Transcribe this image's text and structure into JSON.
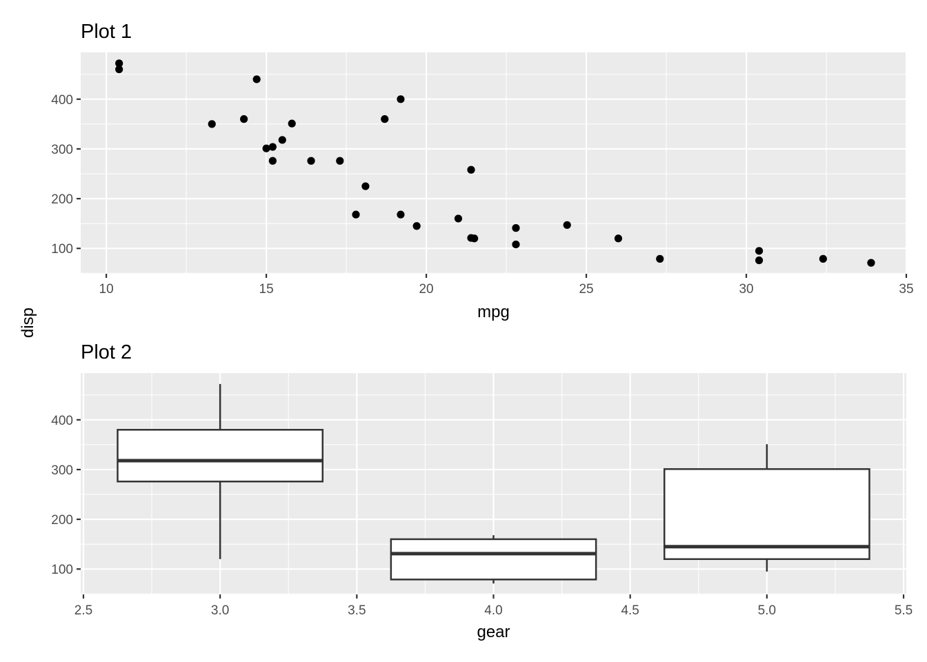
{
  "shared_ylabel": "disp",
  "chart_data": [
    {
      "type": "scatter",
      "title": "Plot 1",
      "xlabel": "mpg",
      "ylabel": "",
      "xlim": [
        9.2,
        35.0
      ],
      "ylim": [
        49.0,
        494.0
      ],
      "xticks": [
        10,
        15,
        20,
        25,
        30,
        35
      ],
      "yticks": [
        100,
        200,
        300,
        400
      ],
      "grid": true,
      "point_color": "#000000",
      "points": [
        [
          10.4,
          472
        ],
        [
          10.4,
          460
        ],
        [
          14.7,
          440
        ],
        [
          13.3,
          350
        ],
        [
          14.3,
          360
        ],
        [
          15.0,
          301
        ],
        [
          15.2,
          304
        ],
        [
          15.2,
          276
        ],
        [
          15.5,
          318
        ],
        [
          15.8,
          351
        ],
        [
          16.4,
          276
        ],
        [
          17.3,
          276
        ],
        [
          18.1,
          225
        ],
        [
          18.7,
          360
        ],
        [
          19.2,
          400
        ],
        [
          17.8,
          168
        ],
        [
          19.2,
          168
        ],
        [
          19.7,
          145
        ],
        [
          21.0,
          160
        ],
        [
          21.4,
          258
        ],
        [
          21.4,
          121
        ],
        [
          21.5,
          120
        ],
        [
          22.8,
          141
        ],
        [
          22.8,
          108
        ],
        [
          24.4,
          147
        ],
        [
          26.0,
          120
        ],
        [
          27.3,
          79
        ],
        [
          30.4,
          95
        ],
        [
          30.4,
          76
        ],
        [
          32.4,
          79
        ],
        [
          33.9,
          71
        ]
      ]
    },
    {
      "type": "box",
      "title": "Plot 2",
      "xlabel": "gear",
      "ylabel": "",
      "xlim": [
        2.49,
        5.51
      ],
      "ylim": [
        49.0,
        494.0
      ],
      "xticks": [
        "2.5",
        "3.0",
        "3.5",
        "4.0",
        "4.5",
        "5.0",
        "5.5"
      ],
      "yticks": [
        100,
        200,
        300,
        400
      ],
      "grid": true,
      "box_fill": "#FFFFFF",
      "box_stroke": "#333333",
      "boxes": [
        {
          "x": 3.0,
          "width": 0.75,
          "min": 120,
          "q1": 276,
          "median": 318,
          "q3": 380,
          "max": 472
        },
        {
          "x": 4.0,
          "width": 0.75,
          "min": 71,
          "q1": 79,
          "median": 131,
          "q3": 160,
          "max": 168
        },
        {
          "x": 5.0,
          "width": 0.75,
          "min": 95,
          "q1": 120,
          "median": 145,
          "q3": 301,
          "max": 351
        }
      ]
    }
  ]
}
